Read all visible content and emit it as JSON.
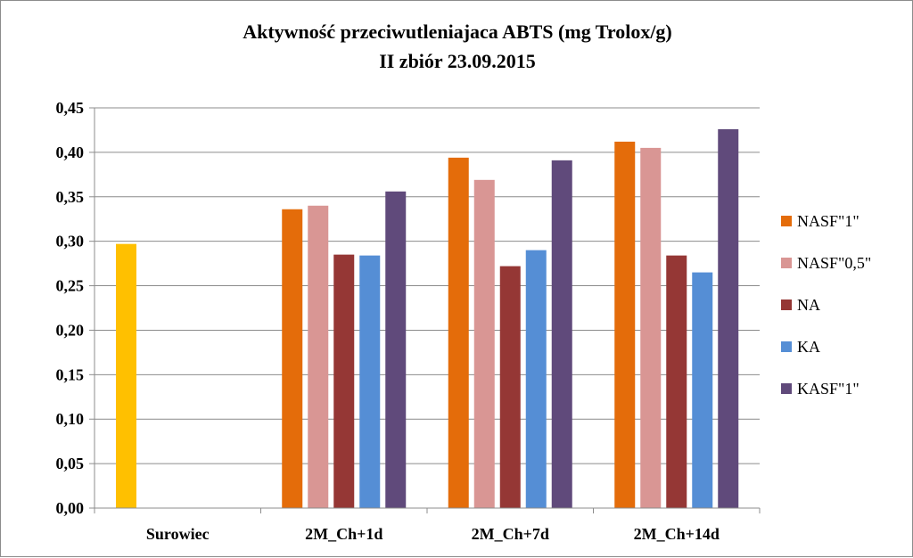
{
  "chart_data": {
    "type": "bar",
    "title": "Aktywność  przeciwutleniajaca ABTS (mg Trolox/g)",
    "subtitle": "II zbiór 23.09.2015",
    "categories": [
      "Surowiec",
      "2M_Ch+1d",
      "2M_Ch+7d",
      "2M_Ch+14d"
    ],
    "ylim": [
      0,
      0.45
    ],
    "yticks": [
      "0,00",
      "0,05",
      "0,10",
      "0,15",
      "0,20",
      "0,25",
      "0,30",
      "0,35",
      "0,40",
      "0,45"
    ],
    "grid": true,
    "legend_position": "right",
    "raw_material": {
      "category": "Surowiec",
      "value": 0.297,
      "color": "#FFC000"
    },
    "series": [
      {
        "name": "NASF\"1\"",
        "color": "#E46C0A",
        "values": [
          null,
          0.336,
          0.394,
          0.412
        ]
      },
      {
        "name": "NASF\"0,5\"",
        "color": "#D99694",
        "values": [
          null,
          0.34,
          0.369,
          0.405
        ]
      },
      {
        "name": "NA",
        "color": "#953735",
        "values": [
          null,
          0.285,
          0.272,
          0.284
        ]
      },
      {
        "name": "KA",
        "color": "#558ED5",
        "values": [
          null,
          0.284,
          0.29,
          0.265
        ]
      },
      {
        "name": "KASF\"1\"",
        "color": "#604A7B",
        "values": [
          null,
          0.356,
          0.391,
          0.426
        ]
      }
    ]
  }
}
